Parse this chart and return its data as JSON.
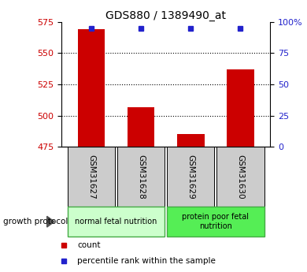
{
  "title": "GDS880 / 1389490_at",
  "samples": [
    "GSM31627",
    "GSM31628",
    "GSM31629",
    "GSM31630"
  ],
  "counts": [
    569,
    507,
    485,
    537
  ],
  "percentile_ranks": [
    95,
    95,
    95,
    95
  ],
  "ylim_left": [
    475,
    575
  ],
  "ylim_right": [
    0,
    100
  ],
  "yticks_left": [
    475,
    500,
    525,
    550,
    575
  ],
  "yticks_right": [
    0,
    25,
    50,
    75,
    100
  ],
  "ytick_labels_right": [
    "0",
    "25",
    "50",
    "75",
    "100%"
  ],
  "dotted_lines": [
    500,
    525,
    550
  ],
  "bar_color": "#cc0000",
  "dot_color": "#2222cc",
  "left_tick_color": "#cc0000",
  "right_tick_color": "#2222cc",
  "groups": [
    {
      "label": "normal fetal nutrition",
      "indices": [
        0,
        1
      ],
      "color": "#ccffcc",
      "edge": "#44aa44"
    },
    {
      "label": "protein poor fetal\nnutrition",
      "indices": [
        2,
        3
      ],
      "color": "#55ee55",
      "edge": "#44aa44"
    }
  ],
  "group_label": "growth protocol",
  "legend_count_label": "count",
  "legend_percentile_label": "percentile rank within the sample",
  "sample_box_color": "#cccccc",
  "bar_width": 0.55,
  "figsize": [
    3.9,
    3.45
  ],
  "dpi": 100
}
